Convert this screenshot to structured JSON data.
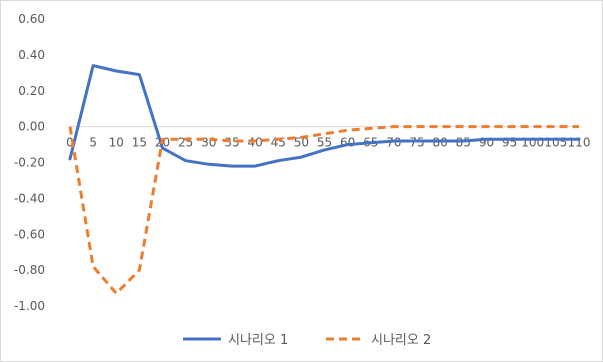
{
  "chart_data": {
    "type": "line",
    "x": [
      0,
      5,
      10,
      15,
      20,
      25,
      30,
      35,
      40,
      45,
      50,
      55,
      60,
      65,
      70,
      75,
      80,
      85,
      90,
      95,
      100,
      105,
      110
    ],
    "x_tick_labels": [
      "0",
      "5",
      "10",
      "15",
      "20",
      "25",
      "30",
      "35",
      "40",
      "45",
      "50",
      "55",
      "60",
      "65",
      "70",
      "75",
      "80",
      "85",
      "90",
      "95",
      "100",
      "105",
      "110"
    ],
    "ylim": [
      -1.0,
      0.6
    ],
    "y_ticks": [
      0.6,
      0.4,
      0.2,
      0.0,
      -0.2,
      -0.4,
      -0.6,
      -0.8,
      -1.0
    ],
    "y_tick_labels": [
      "0.60",
      "0.40",
      "0.20",
      "0.00",
      "-0.20",
      "-0.40",
      "-0.60",
      "-0.80",
      "-1.00"
    ],
    "grid": false,
    "legend_position": "bottom",
    "series": [
      {
        "name": "시나리오 1",
        "color": "#4472c4",
        "dash": "solid",
        "values": [
          -0.18,
          0.34,
          0.31,
          0.29,
          -0.12,
          -0.19,
          -0.21,
          -0.22,
          -0.22,
          -0.19,
          -0.17,
          -0.13,
          -0.1,
          -0.09,
          -0.08,
          -0.08,
          -0.08,
          -0.08,
          -0.07,
          -0.07,
          -0.07,
          -0.07,
          -0.07
        ]
      },
      {
        "name": "시나리오 2",
        "color": "#ed7d31",
        "dash": "dashed",
        "values": [
          0.0,
          -0.78,
          -0.93,
          -0.8,
          -0.07,
          -0.07,
          -0.07,
          -0.08,
          -0.08,
          -0.07,
          -0.06,
          -0.04,
          -0.02,
          -0.01,
          0.0,
          0.0,
          0.0,
          0.0,
          0.0,
          0.0,
          0.0,
          0.0,
          0.0
        ]
      }
    ]
  }
}
